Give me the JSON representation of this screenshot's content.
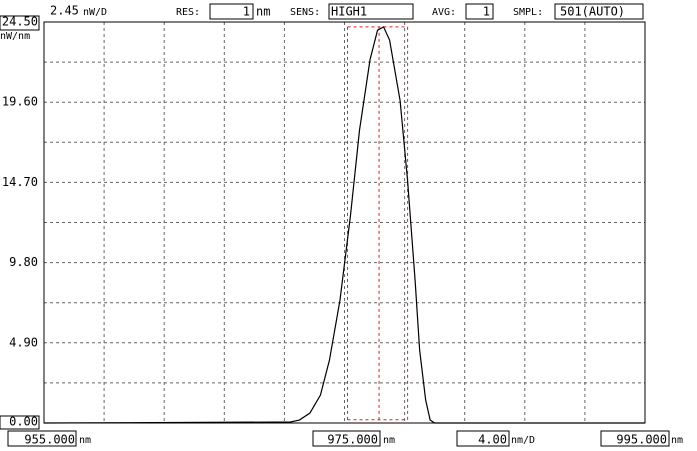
{
  "chart_data": {
    "type": "line",
    "y_scale": "2.45",
    "y_scale_unit": "nW/D",
    "y_label": "nW/nm",
    "x_label": "nm",
    "x_scale": "4.00",
    "x_scale_unit": "nm/D",
    "settings": {
      "res_label": "RES:",
      "res_value": "1",
      "res_unit": "nm",
      "sens_label": "SENS:",
      "sens_value": "HIGH1",
      "avg_label": "AVG:",
      "avg_value": "1",
      "smpl_label": "SMPL:",
      "smpl_value": "501(AUTO)"
    },
    "xlim": [
      955,
      995
    ],
    "ylim": [
      0,
      24.5
    ],
    "xticks": [
      {
        "value": 955,
        "label": "955.000"
      },
      {
        "value": 975,
        "label": "975.000"
      },
      {
        "value": 995,
        "label": "995.000"
      }
    ],
    "yticks": [
      {
        "value": 0,
        "label": "0.00"
      },
      {
        "value": 4.9,
        "label": "4.90"
      },
      {
        "value": 9.8,
        "label": "9.80"
      },
      {
        "value": 14.7,
        "label": "14.70"
      },
      {
        "value": 19.6,
        "label": "19.60"
      },
      {
        "value": 24.5,
        "label": "24.50"
      }
    ],
    "xgrid": [
      959,
      963,
      967,
      971,
      975,
      979,
      983,
      987,
      991
    ],
    "ygrid": [
      2.45,
      4.9,
      7.35,
      9.8,
      12.25,
      14.7,
      17.15,
      19.6,
      22.05
    ],
    "grid": true,
    "markers": {
      "color": "#e02020",
      "x": [
        975.2,
        977.3,
        979.2
      ],
      "ylim": [
        0.2,
        24.2
      ]
    },
    "series": [
      {
        "color": "#000000",
        "x": [
          955,
          971.4,
          972.0,
          972.7,
          973.4,
          974.0,
          974.7,
          975.4,
          976.0,
          976.7,
          977.2,
          977.6,
          978.0,
          978.7,
          979.2,
          979.7,
          980.0,
          980.4,
          980.7,
          981.0,
          995
        ],
        "values": [
          0,
          0.06,
          0.18,
          0.61,
          1.71,
          3.85,
          7.51,
          12.7,
          17.9,
          22.2,
          24.0,
          24.2,
          23.4,
          19.7,
          14.8,
          8.7,
          4.46,
          1.41,
          0.18,
          0,
          0
        ]
      }
    ]
  }
}
